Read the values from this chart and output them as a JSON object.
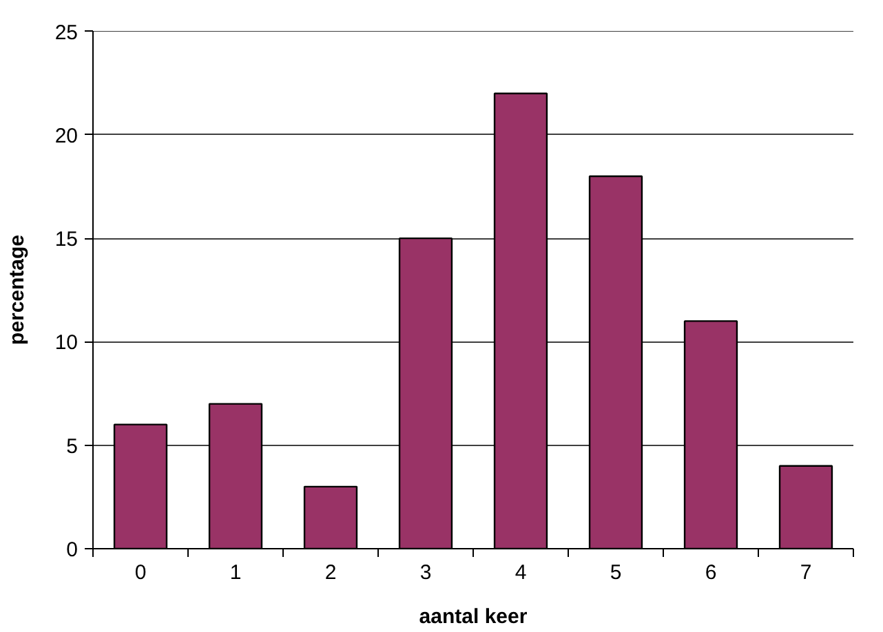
{
  "chart_data": {
    "type": "bar",
    "xlabel": "aantal keer",
    "ylabel": "percentage",
    "categories": [
      "0",
      "1",
      "2",
      "3",
      "4",
      "5",
      "6",
      "7"
    ],
    "values": [
      6,
      7,
      3,
      15,
      22,
      18,
      11,
      4
    ],
    "color": "#993366",
    "ylim": [
      0,
      25
    ],
    "yticks": [
      0,
      5,
      10,
      15,
      20,
      25
    ],
    "grid": "y"
  }
}
